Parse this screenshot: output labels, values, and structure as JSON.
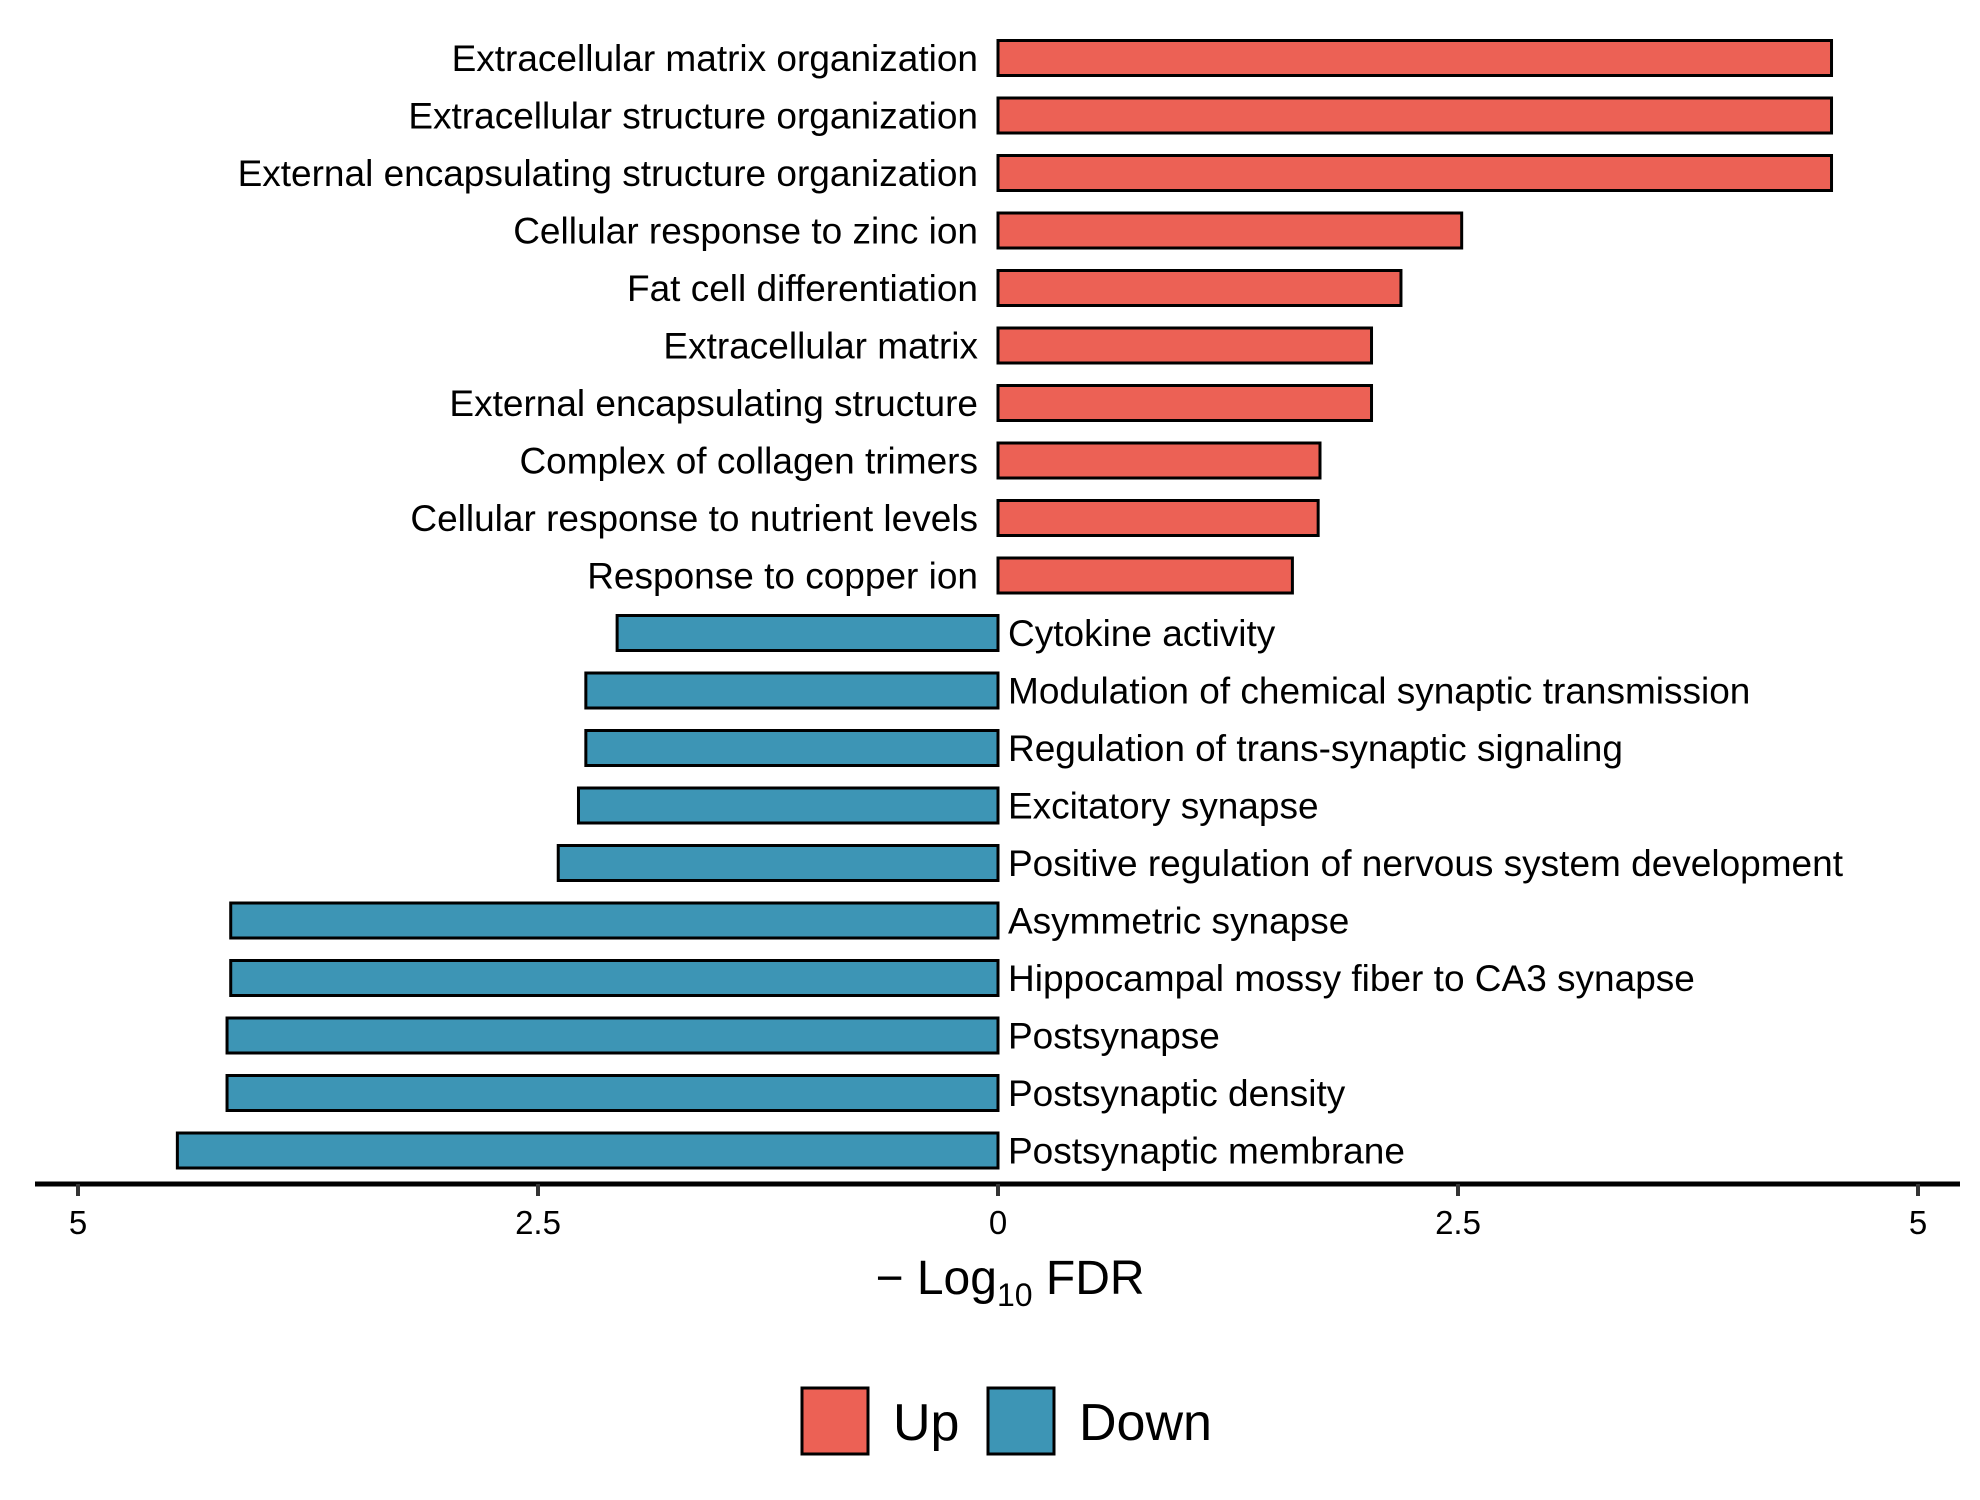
{
  "chart_data": {
    "type": "bar",
    "orientation": "horizontal-diverging",
    "title": "",
    "xlabel": {
      "prefix": "− Log",
      "subscript": "10",
      "suffix": " FDR"
    },
    "xlim": [
      -5,
      5
    ],
    "x_ticks": [
      {
        "value": -5,
        "label": "5"
      },
      {
        "value": -2.5,
        "label": "2.5"
      },
      {
        "value": 0,
        "label": "0"
      },
      {
        "value": 2.5,
        "label": "2.5"
      },
      {
        "value": 5,
        "label": "5"
      }
    ],
    "grid": false,
    "legend": {
      "position": "bottom",
      "entries": [
        {
          "name": "Up",
          "color": "#EC6155"
        },
        {
          "name": "Down",
          "color": "#3D95B5"
        }
      ]
    },
    "bars": [
      {
        "term": "Extracellular matrix organization",
        "value": 4.53,
        "group": "Up"
      },
      {
        "term": "Extracellular structure organization",
        "value": 4.53,
        "group": "Up"
      },
      {
        "term": "External encapsulating structure organization",
        "value": 4.53,
        "group": "Up"
      },
      {
        "term": "Cellular response to zinc ion",
        "value": 2.52,
        "group": "Up"
      },
      {
        "term": "Fat cell differentiation",
        "value": 2.19,
        "group": "Up"
      },
      {
        "term": "Extracellular matrix",
        "value": 2.03,
        "group": "Up"
      },
      {
        "term": "External encapsulating structure",
        "value": 2.03,
        "group": "Up"
      },
      {
        "term": "Complex of collagen trimers",
        "value": 1.75,
        "group": "Up"
      },
      {
        "term": "Cellular response to nutrient levels",
        "value": 1.74,
        "group": "Up"
      },
      {
        "term": "Response to copper ion",
        "value": 1.6,
        "group": "Up"
      },
      {
        "term": "Cytokine activity",
        "value": -2.07,
        "group": "Down"
      },
      {
        "term": "Modulation of chemical synaptic transmission",
        "value": -2.24,
        "group": "Down"
      },
      {
        "term": "Regulation of trans-synaptic signaling",
        "value": -2.24,
        "group": "Down"
      },
      {
        "term": "Excitatory synapse",
        "value": -2.28,
        "group": "Down"
      },
      {
        "term": "Positive regulation of nervous system development",
        "value": -2.39,
        "group": "Down"
      },
      {
        "term": "Asymmetric synapse",
        "value": -4.17,
        "group": "Down"
      },
      {
        "term": "Hippocampal mossy fiber to CA3 synapse",
        "value": -4.17,
        "group": "Down"
      },
      {
        "term": "Postsynapse",
        "value": -4.19,
        "group": "Down"
      },
      {
        "term": "Postsynaptic density",
        "value": -4.19,
        "group": "Down"
      },
      {
        "term": "Postsynaptic membrane",
        "value": -4.46,
        "group": "Down"
      }
    ]
  }
}
